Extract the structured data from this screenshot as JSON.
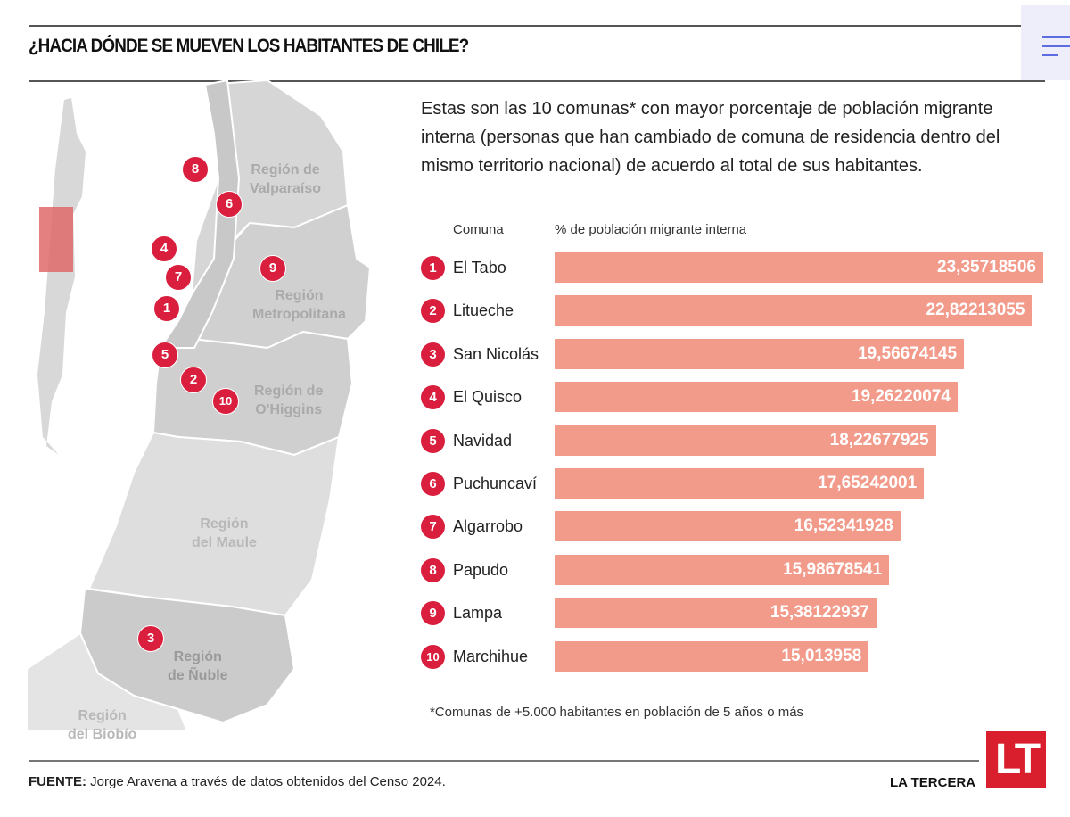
{
  "title": "¿HACIA DÓNDE SE MUEVEN LOS HABITANTES DE CHILE?",
  "menu_icon": "hamburger-menu-icon",
  "intro": "Estas son las 10 comunas* con mayor porcentaje de población migrante interna (personas que han cambiado de comuna de residencia dentro del mismo territorio nacional) de acuerdo al total de sus habitantes.",
  "map": {
    "regions": [
      {
        "line1": "Región de",
        "line2": "Valparaíso"
      },
      {
        "line1": "Región",
        "line2": "Metropolitana"
      },
      {
        "line1": "Región de",
        "line2": "O'Higgins"
      },
      {
        "line1": "Región",
        "line2": "del Maule"
      },
      {
        "line1": "Región",
        "line2": "de Ñuble"
      },
      {
        "line1": "Región",
        "line2": "del Biobío"
      }
    ],
    "markers": [
      "1",
      "2",
      "3",
      "4",
      "5",
      "6",
      "7",
      "8",
      "9",
      "10"
    ]
  },
  "chart_data": {
    "type": "bar",
    "orientation": "horizontal",
    "xlabel": "% de población migrante interna",
    "category_header": "Comuna",
    "ranks": [
      "1",
      "2",
      "3",
      "4",
      "5",
      "6",
      "7",
      "8",
      "9",
      "10"
    ],
    "categories": [
      "El Tabo",
      "Litueche",
      "San Nicolás",
      "El Quisco",
      "Navidad",
      "Puchuncaví",
      "Algarrobo",
      "Papudo",
      "Lampa",
      "Marchihue"
    ],
    "labels": [
      "23,35718506",
      "22,82213055",
      "19,56674145",
      "19,26220074",
      "18,22677925",
      "17,65242001",
      "16,52341928",
      "15,98678541",
      "15,38122937",
      "15,013958"
    ],
    "values": [
      23.35718506,
      22.82213055,
      19.56674145,
      19.26220074,
      18.22677925,
      17.65242001,
      16.52341928,
      15.98678541,
      15.38122937,
      15.013958
    ],
    "bar_color": "#f39b8b",
    "badge_color": "#d91f3d"
  },
  "footnote": "*Comunas de +5.000 habitantes en población de 5 años o más",
  "source_label": "FUENTE:",
  "source_text": " Jorge Aravena a través de datos obtenidos del Censo 2024.",
  "brand": "LA TERCERA",
  "logo": "LT"
}
